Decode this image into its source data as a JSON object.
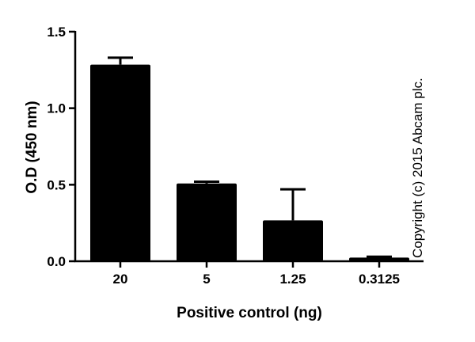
{
  "chart_data": {
    "type": "bar",
    "title": "",
    "xlabel": "Positive control (ng)",
    "ylabel": "O.D (450 nm)",
    "categories": [
      "20",
      "5",
      "1.25",
      "0.3125"
    ],
    "values": [
      1.285,
      0.508,
      0.267,
      0.024
    ],
    "error_upper": [
      1.33,
      0.52,
      0.47,
      0.03
    ],
    "ylim": [
      0,
      1.5
    ],
    "yticks": [
      "0.0",
      "0.5",
      "1.0",
      "1.5"
    ],
    "ytick_values": [
      0,
      0.5,
      1.0,
      1.5
    ],
    "grid": false,
    "bar_color": "#000000",
    "annotation": "Copyright (c) 2015 Abcam plc."
  }
}
